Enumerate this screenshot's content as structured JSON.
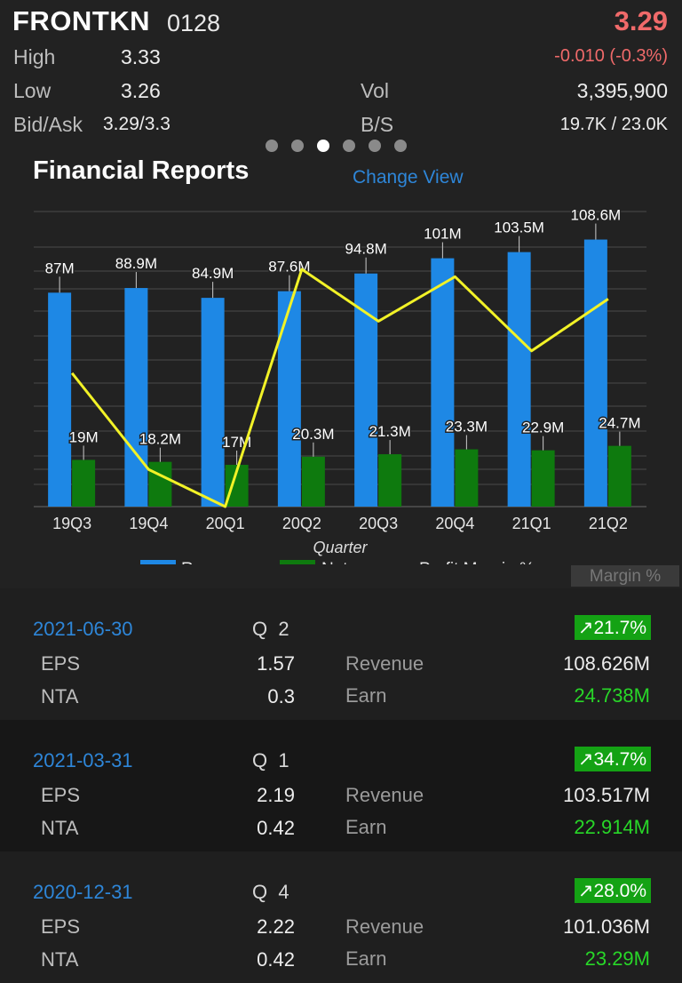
{
  "header": {
    "ticker": "FRONTKN",
    "code": "0128",
    "price": "3.29",
    "change": "-0.010 (-0.3%)",
    "high_label": "High",
    "high": "3.33",
    "low_label": "Low",
    "low": "3.26",
    "bidask_label": "Bid/Ask",
    "bidask": "3.29/3.3",
    "vol_label": "Vol",
    "vol": "3,395,900",
    "bs_label": "B/S",
    "bs": "19.7K / 23.0K"
  },
  "pager": {
    "count": 6,
    "active": 2
  },
  "section": {
    "title": "Financial Reports",
    "change_view": "Change View",
    "margin_button": "Margin %"
  },
  "chart_data": {
    "type": "bar",
    "categories": [
      "19Q3",
      "19Q4",
      "20Q1",
      "20Q2",
      "20Q3",
      "20Q4",
      "21Q1",
      "21Q2"
    ],
    "xlabel": "Quarter",
    "series": [
      {
        "name": "Revenue",
        "color": "#1e88e5",
        "values": [
          87,
          88.9,
          84.9,
          87.6,
          94.8,
          101,
          103.5,
          108.6
        ],
        "labels": [
          "87M",
          "88.9M",
          "84.9M",
          "87.6M",
          "94.8M",
          "101M",
          "103.5M",
          "108.6M"
        ]
      },
      {
        "name": "Net",
        "color": "#0e7a0e",
        "values": [
          19,
          18.2,
          17,
          20.3,
          21.3,
          23.3,
          22.9,
          24.7
        ],
        "labels": [
          "19M",
          "18.2M",
          "17M",
          "20.3M",
          "21.3M",
          "23.3M",
          "22.9M",
          "24.7M"
        ]
      },
      {
        "name": "Profit Margin %",
        "color": "#f2f227",
        "type": "line",
        "values": [
          21.8,
          20.5,
          20.0,
          23.2,
          22.5,
          23.1,
          22.1,
          22.8
        ]
      }
    ],
    "ylim": [
      0,
      120
    ],
    "grid": true,
    "legend": "bottom"
  },
  "reports": [
    {
      "date": "2021-06-30",
      "q_label": "Q",
      "q": "2",
      "change": "↗21.7%",
      "eps_label": "EPS",
      "eps": "1.57",
      "nta_label": "NTA",
      "nta": "0.3",
      "rev_label": "Revenue",
      "revenue": "108.626M",
      "earn_label": "Earn",
      "earn": "24.738M"
    },
    {
      "date": "2021-03-31",
      "q_label": "Q",
      "q": "1",
      "change": "↗34.7%",
      "eps_label": "EPS",
      "eps": "2.19",
      "nta_label": "NTA",
      "nta": "0.42",
      "rev_label": "Revenue",
      "revenue": "103.517M",
      "earn_label": "Earn",
      "earn": "22.914M"
    },
    {
      "date": "2020-12-31",
      "q_label": "Q",
      "q": "4",
      "change": "↗28.0%",
      "eps_label": "EPS",
      "eps": "2.22",
      "nta_label": "NTA",
      "nta": "0.42",
      "rev_label": "Revenue",
      "revenue": "101.036M",
      "earn_label": "Earn",
      "earn": "23.29M"
    }
  ]
}
